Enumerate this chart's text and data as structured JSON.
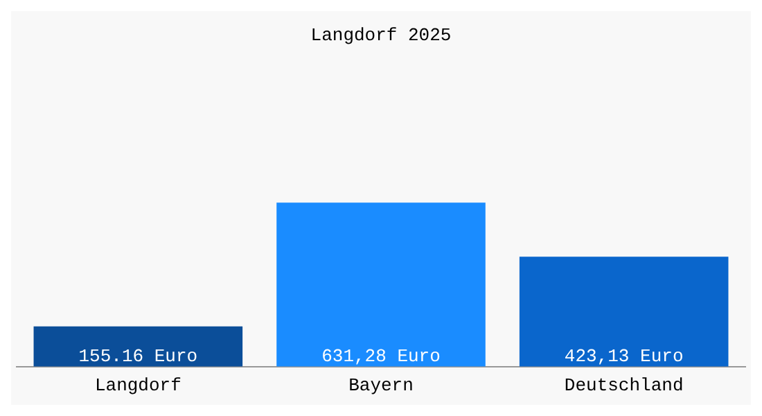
{
  "chart_data": {
    "type": "bar",
    "title": "Langdorf 2025",
    "categories": [
      "Langdorf",
      "Bayern",
      "Deutschland"
    ],
    "values": [
      155.16,
      631.28,
      423.13
    ],
    "colors": [
      "#0b4e99",
      "#1a8cff",
      "#0a66cc"
    ],
    "value_labels": [
      "155.16 Euro",
      "631,28 Euro",
      "423,13 Euro"
    ],
    "grid": false,
    "legend": false
  }
}
